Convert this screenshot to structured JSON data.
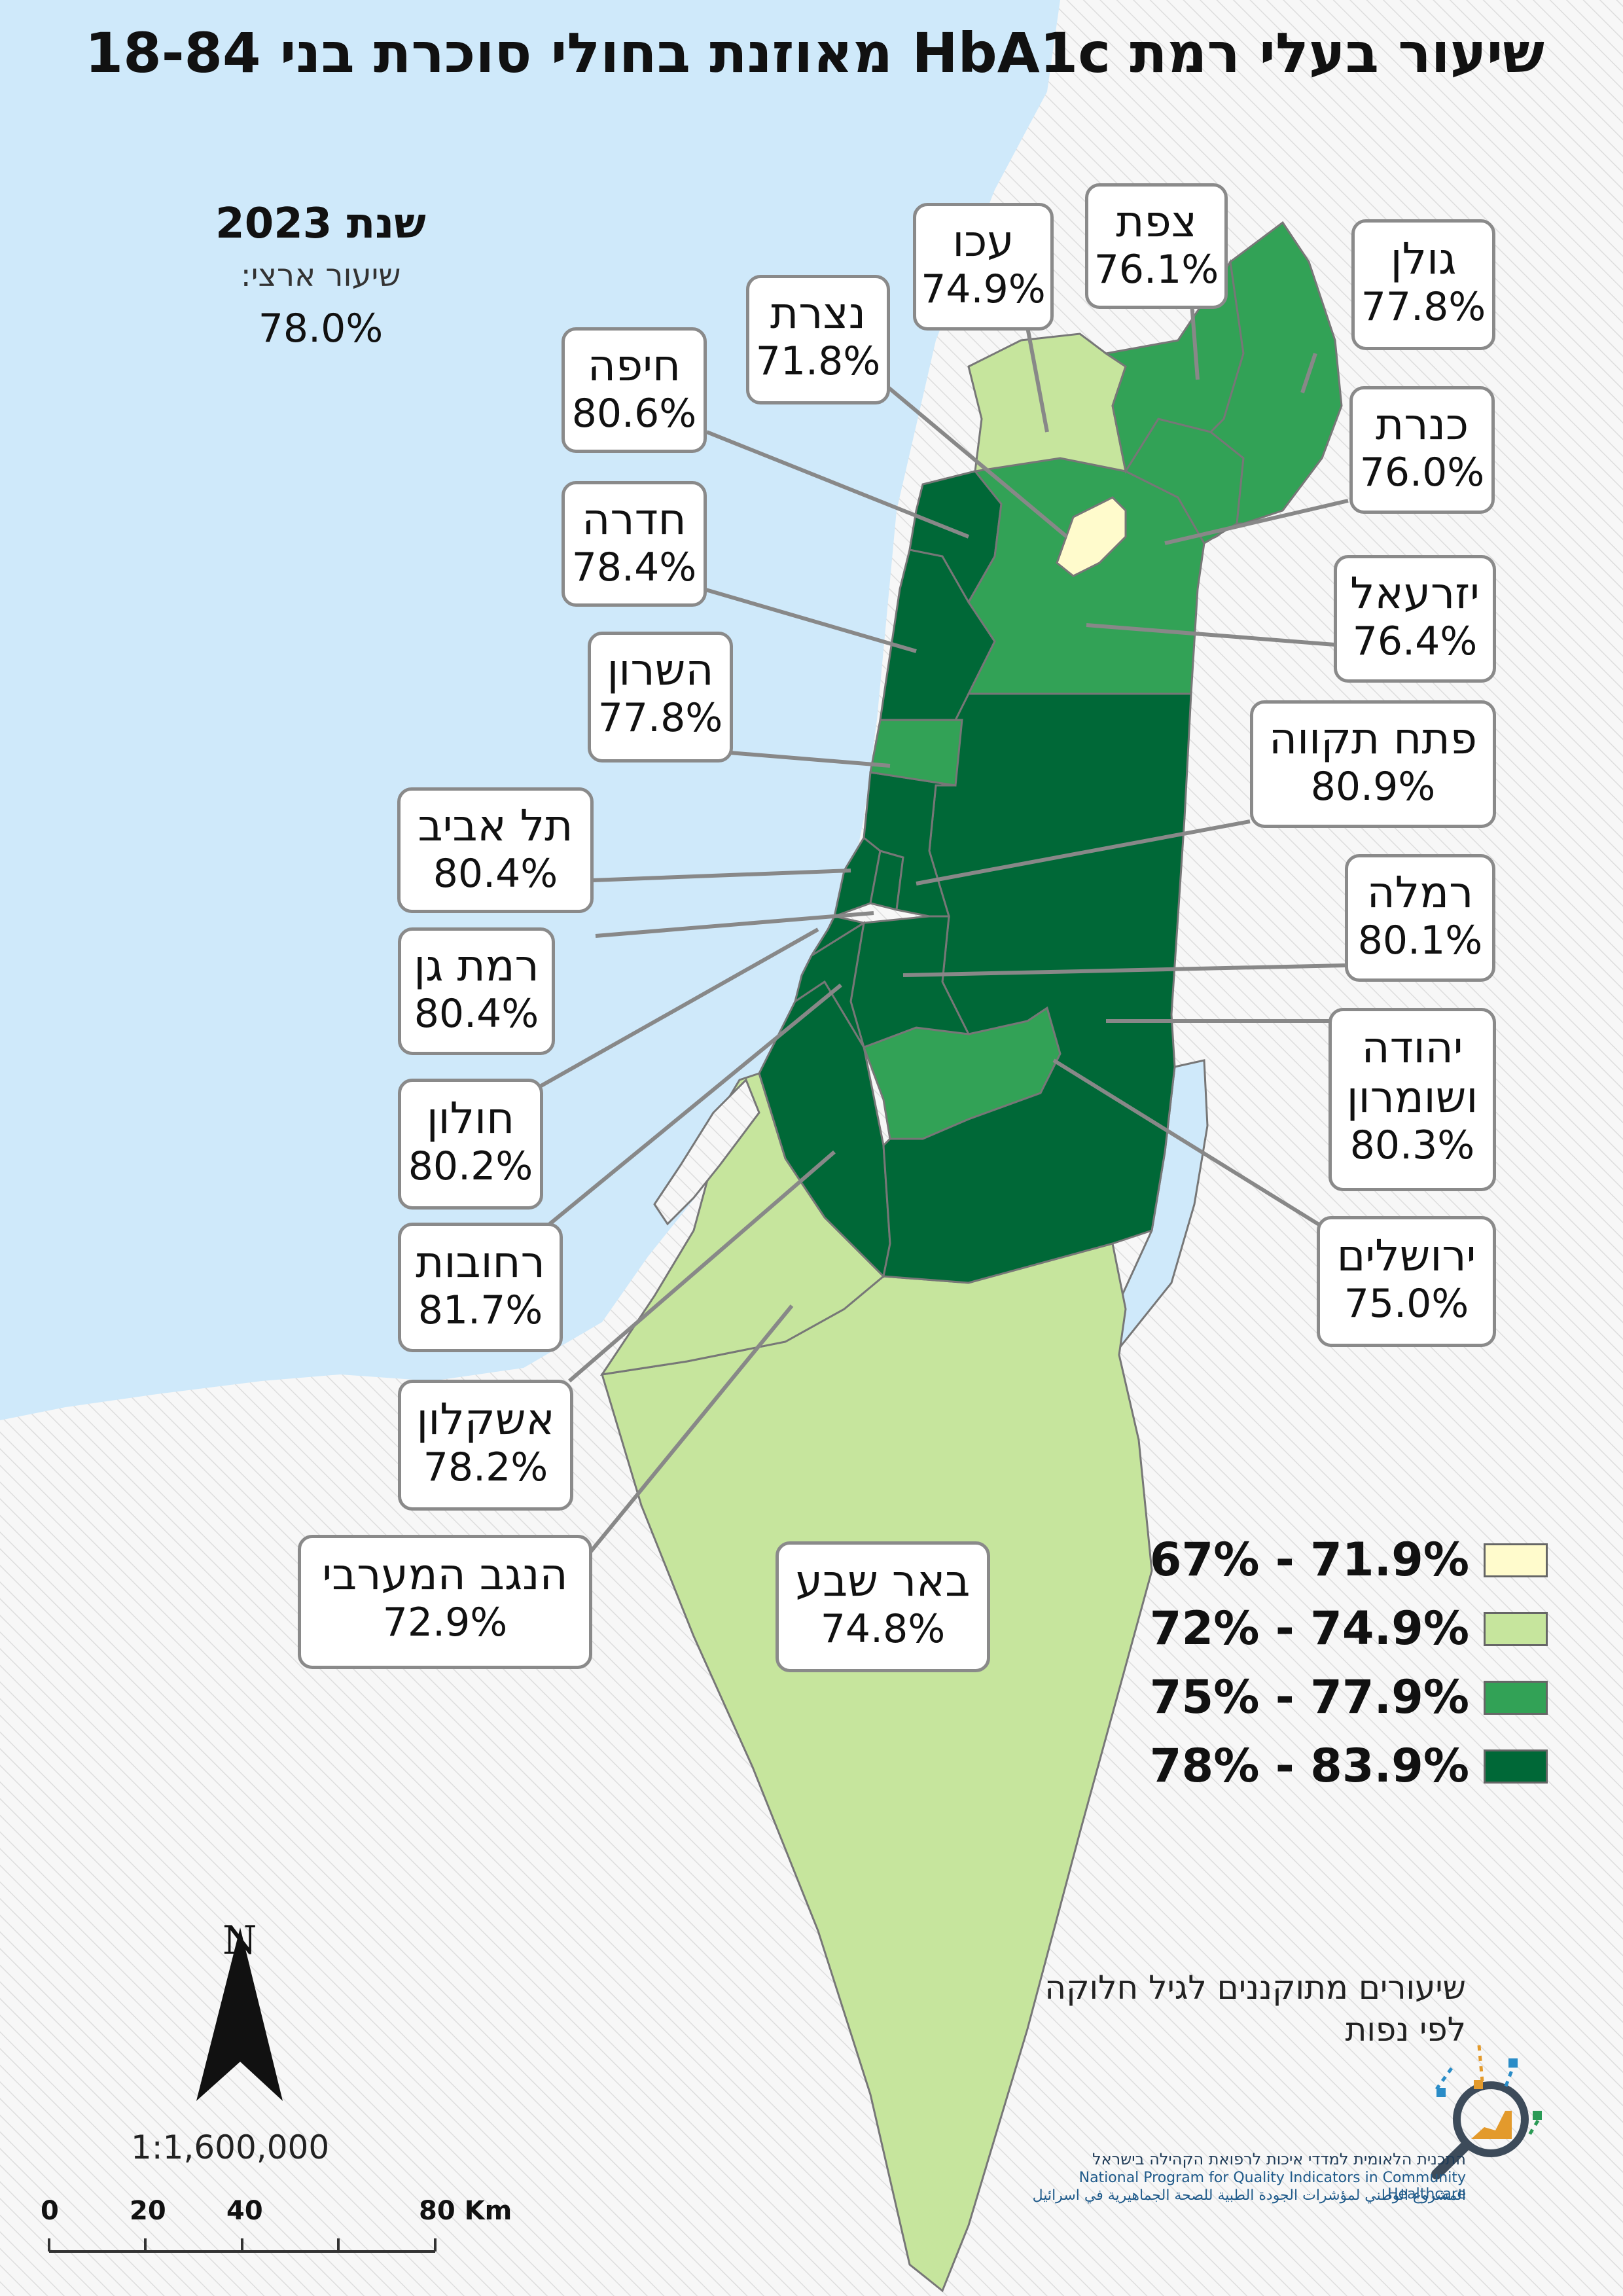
{
  "title": "שיעור בעלי רמת HbA1c מאוזנת בחולי סוכרת בני 18-84",
  "year_title": "שנת 2023",
  "national_rate_label": "שיעור ארצי:",
  "national_rate_value": "78.0%",
  "colors": {
    "sea": "#cfe9fa",
    "land_hatch": "#f1f1f1",
    "class1": "#fffbcc",
    "class2": "#c6e59d",
    "class3": "#32a256",
    "class4": "#006837",
    "border": "#777777"
  },
  "legend": [
    {
      "range": "67% - 71.9%",
      "color": "#fffbcc"
    },
    {
      "range": "72% - 74.9%",
      "color": "#c6e59d"
    },
    {
      "range": "75% - 77.9%",
      "color": "#32a256"
    },
    {
      "range": "78% - 83.9%",
      "color": "#006837"
    }
  ],
  "regions": [
    {
      "name": "גולן",
      "value": "77.8%",
      "class": 3
    },
    {
      "name": "צפת",
      "value": "76.1%",
      "class": 3
    },
    {
      "name": "עכו",
      "value": "74.9%",
      "class": 2
    },
    {
      "name": "נצרת",
      "value": "71.8%",
      "class": 1
    },
    {
      "name": "חיפה",
      "value": "80.6%",
      "class": 4
    },
    {
      "name": "כנרת",
      "value": "76.0%",
      "class": 3
    },
    {
      "name": "חדרה",
      "value": "78.4%",
      "class": 4
    },
    {
      "name": "יזרעאל",
      "value": "76.4%",
      "class": 3
    },
    {
      "name": "השרון",
      "value": "77.8%",
      "class": 3
    },
    {
      "name": "פתח תקווה",
      "value": "80.9%",
      "class": 4
    },
    {
      "name": "תל אביב",
      "value": "80.4%",
      "class": 4
    },
    {
      "name": "רמלה",
      "value": "80.1%",
      "class": 4
    },
    {
      "name": "רמת גן",
      "value": "80.4%",
      "class": 4
    },
    {
      "name": "יהודה ושומרון",
      "value": "80.3%",
      "class": 4
    },
    {
      "name": "חולון",
      "value": "80.2%",
      "class": 4
    },
    {
      "name": "ירושלים",
      "value": "75.0%",
      "class": 3
    },
    {
      "name": "רחובות",
      "value": "81.7%",
      "class": 4
    },
    {
      "name": "אשקלון",
      "value": "78.2%",
      "class": 4
    },
    {
      "name": "הנגב המערבי",
      "value": "72.9%",
      "class": 2
    },
    {
      "name": "באר שבע",
      "value": "74.8%",
      "class": 2
    }
  ],
  "note": "שיעורים מתוקננים לגיל חלוקה לפי נפות",
  "scale": {
    "ratio": "1:1,600,000",
    "north": "N",
    "ticks": [
      "0",
      "20",
      "40",
      "80 Km"
    ]
  },
  "logo": {
    "hebrew": "התכנית הלאומית למדדי איכות לרפואת הקהילה בישראל",
    "english": "National Program for Quality Indicators in Community Healthcare",
    "arabic": "المشروع الوطني لمؤشرات الجودة الطبية للصحة الجماهيرية في اسرائيل"
  }
}
